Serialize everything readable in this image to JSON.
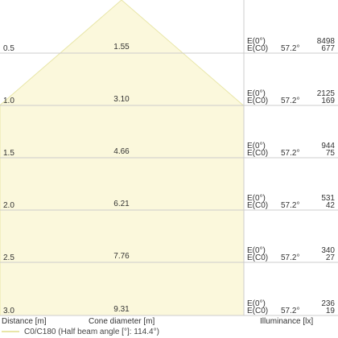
{
  "chart_data": {
    "type": "area",
    "title": "",
    "apex_diameter": 0,
    "rows": [
      {
        "distance": "0.5",
        "cone_diameter": "1.55",
        "e0_label": "E(0°)",
        "ec0_label": "E(C0)",
        "angle": "57.2°",
        "e0": "8498",
        "ec0": "677"
      },
      {
        "distance": "1.0",
        "cone_diameter": "3.10",
        "e0_label": "E(0°)",
        "ec0_label": "E(C0)",
        "angle": "57.2°",
        "e0": "2125",
        "ec0": "169"
      },
      {
        "distance": "1.5",
        "cone_diameter": "4.66",
        "e0_label": "E(0°)",
        "ec0_label": "E(C0)",
        "angle": "57.2°",
        "e0": "944",
        "ec0": "75"
      },
      {
        "distance": "2.0",
        "cone_diameter": "6.21",
        "e0_label": "E(0°)",
        "ec0_label": "E(C0)",
        "angle": "57.2°",
        "e0": "531",
        "ec0": "42"
      },
      {
        "distance": "2.5",
        "cone_diameter": "7.76",
        "e0_label": "E(0°)",
        "ec0_label": "E(C0)",
        "angle": "57.2°",
        "e0": "340",
        "ec0": "27"
      },
      {
        "distance": "3.0",
        "cone_diameter": "9.31",
        "e0_label": "E(0°)",
        "ec0_label": "E(C0)",
        "angle": "57.2°",
        "e0": "236",
        "ec0": "19"
      }
    ],
    "xlabel": "Cone diameter [m]",
    "ylabel": "Distance [m]",
    "illuminance_label": "Illuminance [lx]",
    "legend": "C0/C180 (Half beam angle [°]: 114.4°)",
    "colors": {
      "fill": "#fbf8dc",
      "line": "#e8e6a8",
      "grid": "#cccccc"
    }
  }
}
